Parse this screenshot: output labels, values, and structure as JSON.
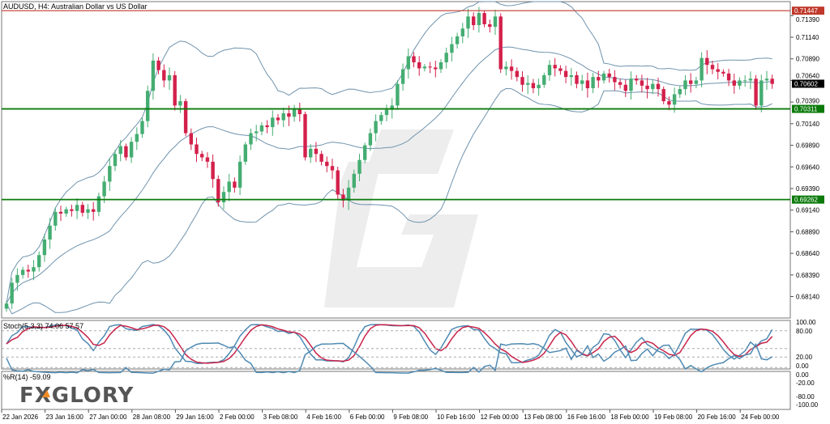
{
  "header": {
    "title": "AUDUSD, H4:  Australian Dollar vs US Dollar"
  },
  "colors": {
    "bull": "#45ad72",
    "bear": "#d3204b",
    "bands": "#6f93ad",
    "resistance": "#c0392b",
    "support": "#0b7a0b",
    "current": "#000000",
    "stoch_main": "#4f8ab3",
    "stoch_signal": "#c8234a",
    "wpr": "#4f8ab3"
  },
  "chart_data": {
    "type": "candlestick",
    "symbol": "AUDUSD",
    "timeframe": "H4",
    "closes": [
      0.6806,
      0.683,
      0.6839,
      0.6845,
      0.6843,
      0.6848,
      0.6862,
      0.688,
      0.6896,
      0.6912,
      0.691,
      0.6915,
      0.6913,
      0.692,
      0.6911,
      0.6915,
      0.6912,
      0.693,
      0.6947,
      0.6965,
      0.6979,
      0.6988,
      0.6975,
      0.6993,
      0.7002,
      0.7017,
      0.7052,
      0.7087,
      0.7076,
      0.7064,
      0.707,
      0.7035,
      0.704,
      0.7003,
      0.699,
      0.6979,
      0.6975,
      0.697,
      0.695,
      0.6923,
      0.6935,
      0.6947,
      0.694,
      0.697,
      0.699,
      0.7003,
      0.7005,
      0.7012,
      0.701,
      0.7021,
      0.7018,
      0.7026,
      0.7022,
      0.7031,
      0.7025,
      0.6975,
      0.6985,
      0.6979,
      0.697,
      0.6965,
      0.696,
      0.6932,
      0.6925,
      0.694,
      0.6956,
      0.6972,
      0.6989,
      0.7003,
      0.7017,
      0.7024,
      0.703,
      0.7035,
      0.706,
      0.7077,
      0.7092,
      0.7085,
      0.7078,
      0.708,
      0.7079,
      0.7077,
      0.7085,
      0.7096,
      0.7106,
      0.7115,
      0.7124,
      0.7138,
      0.7128,
      0.7142,
      0.7129,
      0.7126,
      0.7138,
      0.7077,
      0.708,
      0.7075,
      0.7068,
      0.7059,
      0.7061,
      0.7055,
      0.7059,
      0.707,
      0.7082,
      0.7078,
      0.7075,
      0.7068,
      0.707,
      0.706,
      0.7064,
      0.7055,
      0.7068,
      0.7064,
      0.7072,
      0.7068,
      0.7062,
      0.7059,
      0.7052,
      0.7066,
      0.7064,
      0.7058,
      0.7054,
      0.706,
      0.7054,
      0.704,
      0.7036,
      0.7048,
      0.7054,
      0.7064,
      0.706,
      0.7064,
      0.709,
      0.7082,
      0.7077,
      0.7074,
      0.7072,
      0.7064,
      0.7058,
      0.7064,
      0.7064,
      0.7066,
      0.7035,
      0.7064,
      0.7066,
      0.706
    ],
    "price_ticks": [
      "0.71390",
      "0.71140",
      "0.70890",
      "0.70640",
      "0.70390",
      "0.70140",
      "0.69890",
      "0.69640",
      "0.69390",
      "0.69140",
      "0.68890",
      "0.68640",
      "0.68390",
      "0.68140"
    ],
    "levels": [
      {
        "price": "0.71447",
        "kind": "resistance"
      },
      {
        "price": "0.70311",
        "kind": "support"
      },
      {
        "price": "0.69262",
        "kind": "support"
      }
    ],
    "current_price": "0.70602",
    "date_labels": [
      "22 Jan 2026",
      "23 Jan 16:00",
      "27 Jan 00:00",
      "28 Jan 08:00",
      "29 Jan 16:00",
      "2 Feb 00:00",
      "3 Feb 08:00",
      "4 Feb 16:00",
      "6 Feb 00:00",
      "9 Feb 08:00",
      "10 Feb 16:00",
      "12 Feb 00:00",
      "13 Feb 08:00",
      "16 Feb 16:00",
      "18 Feb 00:00",
      "19 Feb 08:00",
      "20 Feb 16:00",
      "24 Feb 00:00"
    ],
    "indicators": {
      "bollinger": {
        "period": 20,
        "deviation": 2
      },
      "stochastic": {
        "label": "Stoch(5,3,3) 74.06 57.57",
        "levels": [
          "100.00",
          "80.00",
          "20.00",
          "0.00"
        ]
      },
      "wpr": {
        "label": "%R(14) -59.09",
        "levels": [
          "0.00",
          "-20.00",
          "-80.00",
          "-100.00"
        ]
      }
    }
  },
  "logo": {
    "text": "FXGLORY"
  }
}
